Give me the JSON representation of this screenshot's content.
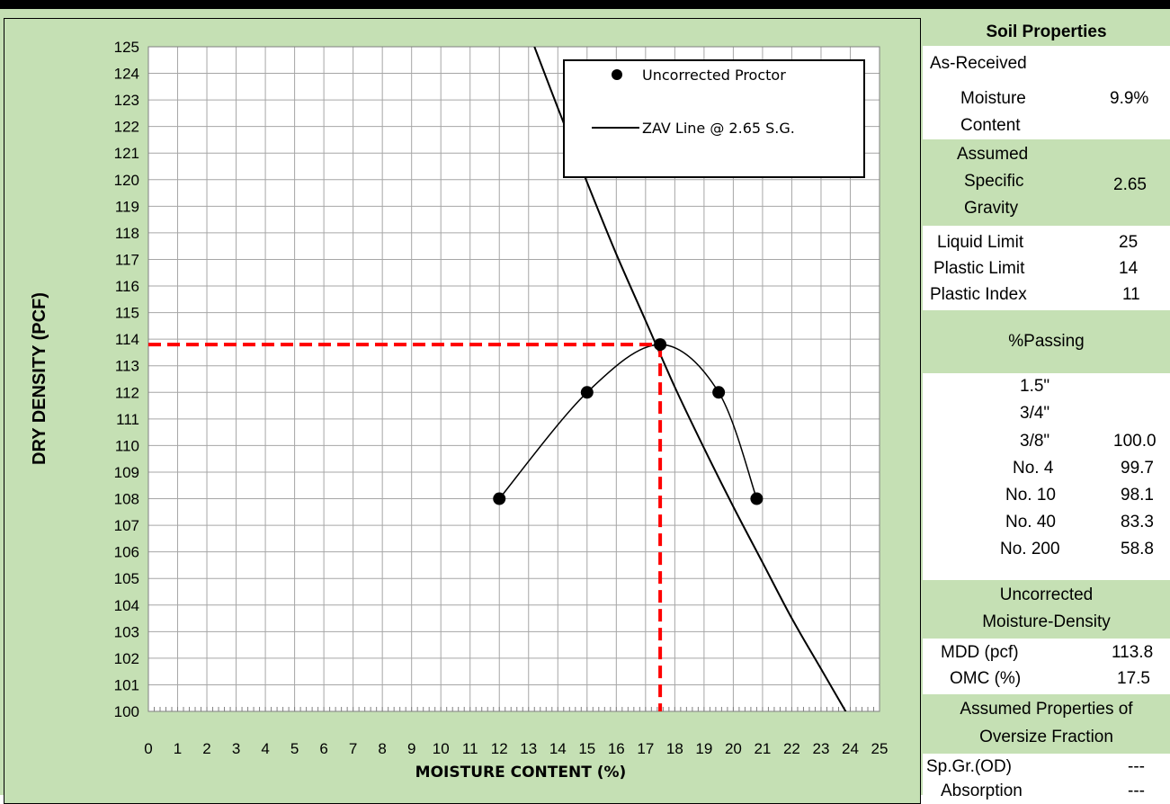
{
  "chart_data": {
    "type": "line",
    "xlabel": "MOISTURE CONTENT (%)",
    "ylabel": "DRY DENSITY (PCF)",
    "xlim": [
      0,
      25
    ],
    "ylim": [
      100,
      125
    ],
    "x_ticks": [
      "0",
      "1",
      "2",
      "3",
      "4",
      "5",
      "6",
      "7",
      "8",
      "9",
      "10",
      "11",
      "12",
      "13",
      "14",
      "15",
      "16",
      "17",
      "18",
      "19",
      "20",
      "21",
      "22",
      "23",
      "24",
      "25"
    ],
    "y_ticks": [
      "100",
      "101",
      "102",
      "103",
      "104",
      "105",
      "106",
      "107",
      "108",
      "109",
      "110",
      "111",
      "112",
      "113",
      "114",
      "115",
      "116",
      "117",
      "118",
      "119",
      "120",
      "121",
      "122",
      "123",
      "124",
      "125"
    ],
    "grid": true,
    "legend_position": "top-right",
    "series": [
      {
        "name": "Uncorrected Proctor",
        "style": "smooth-line-markers",
        "x": [
          12.0,
          15.0,
          17.5,
          19.5,
          20.8
        ],
        "y": [
          108.0,
          112.0,
          113.8,
          112.0,
          108.0
        ]
      },
      {
        "name": "ZAV Line @ 2.65 S.G.",
        "style": "line",
        "x": [
          13.2,
          14.0,
          15.0,
          16.0,
          17.0,
          18.0,
          19.0,
          20.0,
          21.0,
          22.0,
          23.0,
          24.0,
          24.7
        ],
        "y": [
          125.0,
          122.7,
          119.9,
          117.2,
          114.7,
          112.2,
          109.9,
          107.7,
          105.6,
          103.5,
          101.6,
          99.7,
          98.4
        ]
      }
    ],
    "reference_lines": {
      "mdd": 113.8,
      "omc": 17.5,
      "color": "#ff0000"
    },
    "colors": {
      "grid": "#a6a6a6",
      "line": "#000000",
      "background": "#ffffff",
      "panel": "#c5e0b4"
    }
  },
  "properties": {
    "header": "Soil Properties",
    "as_received_l1": "As-Received",
    "as_received_l2": "Moisture",
    "as_received_l3": "Content",
    "moisture_value": "9.9%",
    "sg_l1": "Assumed",
    "sg_l2": "Specific",
    "sg_l3": "Gravity",
    "sg_value": "2.65",
    "limits": [
      {
        "label": "Liquid Limit",
        "value": "25"
      },
      {
        "label": "Plastic Limit",
        "value": "14"
      },
      {
        "label": "Plastic Index",
        "value": "11"
      }
    ],
    "passing_header": "%Passing",
    "sieves": [
      {
        "label": "1.5\"",
        "value": ""
      },
      {
        "label": "3/4\"",
        "value": ""
      },
      {
        "label": "3/8\"",
        "value": "100.0"
      },
      {
        "label": "No. 4",
        "value": "99.7"
      },
      {
        "label": "No. 10",
        "value": "98.1"
      },
      {
        "label": "No. 40",
        "value": "83.3"
      },
      {
        "label": "No. 200",
        "value": "58.8"
      }
    ],
    "md_l1": "Uncorrected",
    "md_l2": "Moisture-Density",
    "mdd_label": "MDD (pcf)",
    "mdd_value": "113.8",
    "omc_label": "OMC (%)",
    "omc_value": "17.5",
    "oversize_l1": "Assumed Properties of",
    "oversize_l2": "Oversize Fraction",
    "spgr_label": "Sp.Gr.(OD)",
    "spgr_value": "---",
    "absorption_label": "Absorption",
    "absorption_value": "---"
  }
}
